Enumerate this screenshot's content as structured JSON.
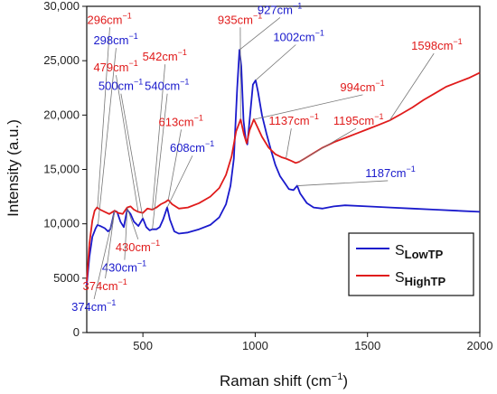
{
  "chart_data": {
    "type": "line",
    "xlabel": "Raman shift (cm",
    "xlabel_sup": "−1",
    "xlabel_close": ")",
    "ylabel": "Intensity (a.u.)",
    "xlim": [
      250,
      2000
    ],
    "ylim": [
      0,
      30000
    ],
    "xticks": [
      500,
      1000,
      1500,
      2000
    ],
    "yticks": [
      0,
      5000,
      10000,
      15000,
      20000,
      25000,
      30000
    ],
    "ytick_labels": [
      "0",
      "5000",
      "10,000",
      "15,000",
      "20,000",
      "25,000",
      "30,000"
    ],
    "grid": false,
    "legend_position": "bottom-right",
    "series": [
      {
        "name_main": "S",
        "name_sub": "LowTP",
        "color": "#1a1acc",
        "points": [
          [
            250,
            4400
          ],
          [
            262,
            7000
          ],
          [
            275,
            8800
          ],
          [
            290,
            9600
          ],
          [
            298,
            9900
          ],
          [
            310,
            9800
          ],
          [
            330,
            9600
          ],
          [
            345,
            9300
          ],
          [
            355,
            9500
          ],
          [
            374,
            11200
          ],
          [
            385,
            11100
          ],
          [
            400,
            10200
          ],
          [
            415,
            9700
          ],
          [
            430,
            11300
          ],
          [
            445,
            10900
          ],
          [
            460,
            10200
          ],
          [
            480,
            9800
          ],
          [
            500,
            10500
          ],
          [
            515,
            9700
          ],
          [
            530,
            9400
          ],
          [
            542,
            9500
          ],
          [
            560,
            9500
          ],
          [
            575,
            9700
          ],
          [
            590,
            10400
          ],
          [
            608,
            11500
          ],
          [
            620,
            10400
          ],
          [
            640,
            9300
          ],
          [
            660,
            9100
          ],
          [
            700,
            9200
          ],
          [
            750,
            9500
          ],
          [
            800,
            9900
          ],
          [
            840,
            10600
          ],
          [
            870,
            11800
          ],
          [
            890,
            13500
          ],
          [
            905,
            16000
          ],
          [
            920,
            22500
          ],
          [
            930,
            26000
          ],
          [
            938,
            24500
          ],
          [
            948,
            19500
          ],
          [
            958,
            17700
          ],
          [
            965,
            17300
          ],
          [
            975,
            19500
          ],
          [
            990,
            22800
          ],
          [
            1002,
            23200
          ],
          [
            1012,
            22200
          ],
          [
            1030,
            20000
          ],
          [
            1050,
            18300
          ],
          [
            1070,
            16800
          ],
          [
            1090,
            15400
          ],
          [
            1110,
            14400
          ],
          [
            1130,
            13800
          ],
          [
            1150,
            13200
          ],
          [
            1170,
            13100
          ],
          [
            1187,
            13500
          ],
          [
            1200,
            12800
          ],
          [
            1230,
            11900
          ],
          [
            1260,
            11500
          ],
          [
            1300,
            11400
          ],
          [
            1350,
            11600
          ],
          [
            1400,
            11700
          ],
          [
            1500,
            11600
          ],
          [
            1600,
            11500
          ],
          [
            1700,
            11400
          ],
          [
            1800,
            11300
          ],
          [
            1900,
            11200
          ],
          [
            2000,
            11100
          ]
        ]
      },
      {
        "name_main": "S",
        "name_sub": "HighTP",
        "color": "#e01b1b",
        "points": [
          [
            250,
            4700
          ],
          [
            262,
            8200
          ],
          [
            275,
            10300
          ],
          [
            285,
            11200
          ],
          [
            296,
            11500
          ],
          [
            310,
            11300
          ],
          [
            330,
            11100
          ],
          [
            350,
            10900
          ],
          [
            374,
            11200
          ],
          [
            390,
            11000
          ],
          [
            410,
            10900
          ],
          [
            430,
            11500
          ],
          [
            445,
            11600
          ],
          [
            460,
            11300
          ],
          [
            479,
            11100
          ],
          [
            500,
            11000
          ],
          [
            520,
            11400
          ],
          [
            542,
            11300
          ],
          [
            560,
            11500
          ],
          [
            580,
            11800
          ],
          [
            600,
            12000
          ],
          [
            613,
            12200
          ],
          [
            630,
            11800
          ],
          [
            660,
            11400
          ],
          [
            700,
            11500
          ],
          [
            750,
            11900
          ],
          [
            800,
            12500
          ],
          [
            840,
            13300
          ],
          [
            870,
            14500
          ],
          [
            895,
            16200
          ],
          [
            915,
            18500
          ],
          [
            935,
            19600
          ],
          [
            950,
            18200
          ],
          [
            962,
            17400
          ],
          [
            975,
            18600
          ],
          [
            994,
            19600
          ],
          [
            1010,
            18900
          ],
          [
            1030,
            18000
          ],
          [
            1060,
            17000
          ],
          [
            1090,
            16400
          ],
          [
            1120,
            16100
          ],
          [
            1137,
            16000
          ],
          [
            1160,
            15800
          ],
          [
            1180,
            15600
          ],
          [
            1195,
            15700
          ],
          [
            1220,
            16000
          ],
          [
            1260,
            16500
          ],
          [
            1300,
            17000
          ],
          [
            1350,
            17500
          ],
          [
            1400,
            17900
          ],
          [
            1450,
            18300
          ],
          [
            1500,
            18700
          ],
          [
            1550,
            19100
          ],
          [
            1598,
            19500
          ],
          [
            1650,
            20100
          ],
          [
            1700,
            20700
          ],
          [
            1750,
            21400
          ],
          [
            1800,
            22000
          ],
          [
            1850,
            22600
          ],
          [
            1900,
            23000
          ],
          [
            1950,
            23400
          ],
          [
            2000,
            23900
          ]
        ]
      }
    ],
    "annotations": [
      {
        "text": "296cm",
        "series": 1,
        "label": [
          252,
          28400
        ],
        "target": [
          298,
          11500
        ]
      },
      {
        "text": "298cm",
        "series": 0,
        "label": [
          280,
          26500
        ],
        "target": [
          300,
          9900
        ]
      },
      {
        "text": "479cm",
        "series": 1,
        "label": [
          280,
          24000
        ],
        "target": [
          479,
          11100
        ]
      },
      {
        "text": "542cm",
        "series": 1,
        "label": [
          498,
          25000
        ],
        "target": [
          542,
          11300
        ]
      },
      {
        "text": "500cm",
        "series": 0,
        "label": [
          302,
          22300
        ],
        "target": [
          500,
          10500
        ]
      },
      {
        "text": "540cm",
        "series": 0,
        "label": [
          508,
          22300
        ],
        "target": [
          542,
          9500
        ]
      },
      {
        "text": "613cm",
        "series": 1,
        "label": [
          570,
          19000
        ],
        "target": [
          613,
          12200
        ]
      },
      {
        "text": "608cm",
        "series": 0,
        "label": [
          620,
          16600
        ],
        "target": [
          608,
          11500
        ]
      },
      {
        "text": "935cm",
        "series": 1,
        "label": [
          833,
          28400
        ],
        "target": [
          935,
          19600
        ]
      },
      {
        "text": "927cm",
        "series": 0,
        "label": [
          1010,
          29300
        ],
        "target": [
          930,
          26000
        ]
      },
      {
        "text": "1002cm",
        "series": 0,
        "label": [
          1080,
          26800
        ],
        "target": [
          1002,
          23200
        ]
      },
      {
        "text": "994cm",
        "series": 1,
        "label": [
          1378,
          22200
        ],
        "target": [
          994,
          19600
        ]
      },
      {
        "text": "1598cm",
        "series": 1,
        "label": [
          1695,
          26000
        ],
        "target": [
          1598,
          19500
        ]
      },
      {
        "text": "1137cm",
        "series": 1,
        "label": [
          1060,
          19100
        ],
        "target": [
          1137,
          16000
        ]
      },
      {
        "text": "1195cm",
        "series": 1,
        "label": [
          1348,
          19100
        ],
        "target": [
          1195,
          15700
        ]
      },
      {
        "text": "1187cm",
        "series": 0,
        "label": [
          1490,
          14300
        ],
        "target": [
          1187,
          13500
        ]
      },
      {
        "text": "430cm",
        "series": 1,
        "label": [
          378,
          7500
        ],
        "target": [
          430,
          11500
        ]
      },
      {
        "text": "430cm",
        "series": 0,
        "label": [
          318,
          5600
        ],
        "target": [
          430,
          11300
        ]
      },
      {
        "text": "374cm",
        "series": 1,
        "label": [
          232,
          3900
        ],
        "target": [
          374,
          11200
        ]
      },
      {
        "text": "374cm",
        "series": 0,
        "label": [
          182,
          2000
        ],
        "target": [
          374,
          11200
        ]
      }
    ]
  }
}
